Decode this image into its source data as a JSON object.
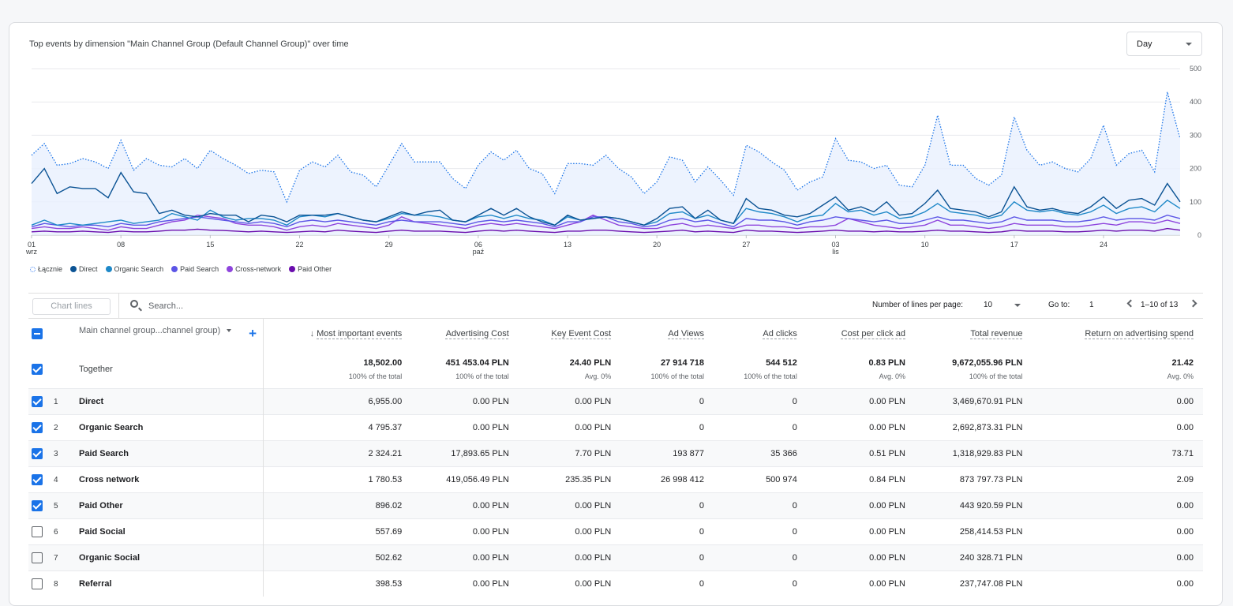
{
  "card": {
    "title": "Top events by dimension \"Main Channel Group (Default Channel Group)\" over time"
  },
  "granularity": {
    "selected": "Day"
  },
  "chart_data": {
    "type": "line",
    "x": [
      "2024-09-01",
      "2024-09-02",
      "2024-09-03",
      "2024-09-04",
      "2024-09-05",
      "2024-09-06",
      "2024-09-07",
      "2024-09-08",
      "2024-09-09",
      "2024-09-10",
      "2024-09-11",
      "2024-09-12",
      "2024-09-13",
      "2024-09-14",
      "2024-09-15",
      "2024-09-16",
      "2024-09-17",
      "2024-09-18",
      "2024-09-19",
      "2024-09-20",
      "2024-09-21",
      "2024-09-22",
      "2024-09-23",
      "2024-09-24",
      "2024-09-25",
      "2024-09-26",
      "2024-09-27",
      "2024-09-28",
      "2024-09-29",
      "2024-09-30",
      "2024-10-01",
      "2024-10-02",
      "2024-10-03",
      "2024-10-04",
      "2024-10-05",
      "2024-10-06",
      "2024-10-07",
      "2024-10-08",
      "2024-10-09",
      "2024-10-10",
      "2024-10-11",
      "2024-10-12",
      "2024-10-13",
      "2024-10-14",
      "2024-10-15",
      "2024-10-16",
      "2024-10-17",
      "2024-10-18",
      "2024-10-19",
      "2024-10-20",
      "2024-10-21",
      "2024-10-22",
      "2024-10-23",
      "2024-10-24",
      "2024-10-25",
      "2024-10-26",
      "2024-10-27",
      "2024-10-28",
      "2024-10-29",
      "2024-10-30",
      "2024-10-31",
      "2024-11-01",
      "2024-11-02",
      "2024-11-03",
      "2024-11-04",
      "2024-11-05",
      "2024-11-06",
      "2024-11-07",
      "2024-11-08",
      "2024-11-09",
      "2024-11-10",
      "2024-11-11",
      "2024-11-12",
      "2024-11-13",
      "2024-11-14",
      "2024-11-15",
      "2024-11-16",
      "2024-11-17",
      "2024-11-18",
      "2024-11-19",
      "2024-11-20",
      "2024-11-21",
      "2024-11-22",
      "2024-11-23",
      "2024-11-24",
      "2024-11-25",
      "2024-11-26",
      "2024-11-27",
      "2024-11-28",
      "2024-11-29",
      "2024-11-30"
    ],
    "series": [
      {
        "name": "Łącznie",
        "color": "#1a73e8",
        "style": "dotted-area",
        "values": [
          240,
          275,
          210,
          215,
          230,
          220,
          200,
          285,
          195,
          230,
          210,
          205,
          230,
          200,
          255,
          230,
          210,
          185,
          195,
          190,
          100,
          195,
          220,
          205,
          240,
          190,
          180,
          145,
          210,
          275,
          220,
          220,
          220,
          170,
          140,
          210,
          250,
          225,
          255,
          200,
          185,
          125,
          215,
          215,
          210,
          240,
          200,
          175,
          125,
          160,
          235,
          225,
          160,
          205,
          165,
          120,
          270,
          250,
          220,
          195,
          135,
          160,
          175,
          290,
          225,
          220,
          200,
          210,
          150,
          145,
          210,
          360,
          210,
          210,
          170,
          150,
          180,
          355,
          255,
          210,
          220,
          200,
          190,
          230,
          330,
          210,
          245,
          255,
          190,
          430,
          290
        ]
      },
      {
        "name": "Direct",
        "color": "#0b5394",
        "style": "line",
        "values": [
          155,
          200,
          125,
          145,
          140,
          140,
          112,
          188,
          130,
          125,
          65,
          75,
          60,
          55,
          65,
          60,
          60,
          40,
          60,
          55,
          40,
          60,
          60,
          60,
          65,
          55,
          45,
          40,
          55,
          70,
          60,
          70,
          75,
          45,
          40,
          60,
          80,
          60,
          80,
          55,
          40,
          30,
          60,
          45,
          50,
          55,
          50,
          40,
          30,
          50,
          80,
          85,
          50,
          75,
          45,
          35,
          110,
          80,
          75,
          60,
          55,
          65,
          90,
          115,
          75,
          85,
          70,
          100,
          60,
          65,
          95,
          135,
          80,
          75,
          70,
          55,
          70,
          145,
          85,
          75,
          80,
          70,
          65,
          85,
          115,
          80,
          105,
          110,
          90,
          155,
          100
        ]
      },
      {
        "name": "Organic Search",
        "color": "#1e88c8",
        "style": "line",
        "values": [
          30,
          45,
          30,
          35,
          30,
          35,
          40,
          45,
          35,
          40,
          45,
          65,
          55,
          45,
          75,
          55,
          45,
          50,
          50,
          45,
          30,
          55,
          60,
          55,
          65,
          55,
          45,
          40,
          50,
          65,
          60,
          60,
          55,
          45,
          40,
          55,
          60,
          50,
          60,
          50,
          45,
          30,
          55,
          45,
          50,
          55,
          50,
          40,
          30,
          40,
          65,
          70,
          50,
          60,
          45,
          35,
          80,
          70,
          65,
          55,
          40,
          55,
          60,
          95,
          70,
          75,
          60,
          70,
          50,
          55,
          70,
          95,
          70,
          65,
          60,
          50,
          60,
          100,
          75,
          70,
          75,
          65,
          60,
          70,
          90,
          65,
          80,
          85,
          70,
          105,
          80
        ]
      },
      {
        "name": "Paid Search",
        "color": "#5c55e6",
        "style": "line",
        "values": [
          25,
          35,
          30,
          25,
          30,
          30,
          25,
          35,
          30,
          30,
          40,
          45,
          50,
          55,
          50,
          45,
          40,
          35,
          40,
          35,
          25,
          40,
          45,
          40,
          45,
          40,
          35,
          30,
          40,
          45,
          40,
          40,
          40,
          35,
          30,
          40,
          45,
          40,
          45,
          40,
          35,
          25,
          40,
          40,
          55,
          55,
          40,
          35,
          25,
          30,
          45,
          50,
          40,
          45,
          35,
          25,
          50,
          45,
          45,
          40,
          30,
          40,
          45,
          55,
          50,
          45,
          40,
          45,
          35,
          35,
          45,
          55,
          45,
          45,
          40,
          35,
          40,
          55,
          45,
          45,
          45,
          40,
          40,
          45,
          55,
          45,
          50,
          50,
          45,
          60,
          50
        ]
      },
      {
        "name": "Cross-network",
        "color": "#8e44dd",
        "style": "line",
        "values": [
          20,
          25,
          20,
          20,
          25,
          20,
          15,
          25,
          20,
          20,
          30,
          40,
          45,
          60,
          55,
          50,
          35,
          30,
          30,
          25,
          15,
          25,
          30,
          25,
          35,
          30,
          25,
          20,
          30,
          55,
          40,
          35,
          30,
          25,
          20,
          30,
          35,
          30,
          35,
          30,
          25,
          20,
          30,
          40,
          60,
          45,
          30,
          25,
          20,
          20,
          30,
          35,
          25,
          30,
          25,
          20,
          30,
          30,
          25,
          25,
          20,
          25,
          25,
          30,
          50,
          40,
          30,
          25,
          20,
          25,
          30,
          45,
          30,
          30,
          25,
          20,
          25,
          35,
          30,
          30,
          30,
          25,
          25,
          30,
          35,
          30,
          40,
          40,
          35,
          45,
          35
        ]
      },
      {
        "name": "Paid Other",
        "color": "#6a0dad",
        "style": "line",
        "values": [
          10,
          12,
          10,
          10,
          12,
          10,
          8,
          12,
          10,
          10,
          12,
          15,
          15,
          18,
          15,
          14,
          12,
          10,
          12,
          10,
          8,
          10,
          12,
          10,
          15,
          12,
          10,
          8,
          12,
          15,
          12,
          12,
          12,
          10,
          8,
          12,
          15,
          12,
          15,
          12,
          10,
          8,
          12,
          12,
          15,
          15,
          12,
          10,
          8,
          10,
          12,
          15,
          10,
          12,
          10,
          8,
          15,
          12,
          12,
          10,
          8,
          10,
          12,
          15,
          12,
          12,
          10,
          12,
          10,
          10,
          12,
          15,
          12,
          12,
          10,
          8,
          10,
          15,
          12,
          12,
          12,
          10,
          10,
          12,
          15,
          12,
          15,
          15,
          12,
          20,
          15
        ]
      }
    ],
    "x_ticks": [
      {
        "i": 0,
        "label": "01",
        "sub": "wrz"
      },
      {
        "i": 7,
        "label": "08",
        "sub": ""
      },
      {
        "i": 14,
        "label": "15",
        "sub": ""
      },
      {
        "i": 21,
        "label": "22",
        "sub": ""
      },
      {
        "i": 28,
        "label": "29",
        "sub": ""
      },
      {
        "i": 35,
        "label": "06",
        "sub": "paź"
      },
      {
        "i": 42,
        "label": "13",
        "sub": ""
      },
      {
        "i": 49,
        "label": "20",
        "sub": ""
      },
      {
        "i": 56,
        "label": "27",
        "sub": ""
      },
      {
        "i": 63,
        "label": "03",
        "sub": "lis"
      },
      {
        "i": 70,
        "label": "10",
        "sub": ""
      },
      {
        "i": 77,
        "label": "17",
        "sub": ""
      },
      {
        "i": 84,
        "label": "24",
        "sub": ""
      }
    ],
    "y_ticks": [
      0,
      100,
      200,
      300,
      400,
      500
    ],
    "ylim": [
      0,
      500
    ],
    "grid": true,
    "legend_position": "bottom-left"
  },
  "toolbar": {
    "chart_lines": "Chart lines",
    "search_placeholder": "Search...",
    "lines_per_page_label": "Number of lines per page:",
    "lines_per_page": "10",
    "goto_label": "Go to:",
    "goto_value": "1",
    "range": "1–10 of 13"
  },
  "table": {
    "dim_header": "Main channel group...channel group)",
    "plus": "+",
    "sort_arrow": "↓",
    "headers": [
      "Most important events",
      "Advertising Cost",
      "Key Event Cost",
      "Ad Views",
      "Ad clicks",
      "Cost per click ad",
      "Total revenue",
      "Return on advertising spend"
    ],
    "totals": {
      "label": "Together",
      "values": [
        "18,502.00",
        "451 453.04 PLN",
        "24.40 PLN",
        "27 914 718",
        "544 512",
        "0.83 PLN",
        "9,672,055.96 PLN",
        "21.42"
      ],
      "subs": [
        "100% of the total",
        "100% of the total",
        "Avg. 0%",
        "100% of the total",
        "100% of the total",
        "Avg. 0%",
        "100% of the total",
        "Avg. 0%"
      ]
    },
    "rows": [
      {
        "n": "1",
        "name": "Direct",
        "checked": true,
        "values": [
          "6,955.00",
          "0.00 PLN",
          "0.00 PLN",
          "0",
          "0",
          "0.00 PLN",
          "3,469,670.91 PLN",
          "0.00"
        ]
      },
      {
        "n": "2",
        "name": "Organic Search",
        "checked": true,
        "values": [
          "4 795.37",
          "0.00 PLN",
          "0.00 PLN",
          "0",
          "0",
          "0.00 PLN",
          "2,692,873.31 PLN",
          "0.00"
        ]
      },
      {
        "n": "3",
        "name": "Paid Search",
        "checked": true,
        "values": [
          "2 324.21",
          "17,893.65 PLN",
          "7.70 PLN",
          "193 877",
          "35 366",
          "0.51 PLN",
          "1,318,929.83 PLN",
          "73.71"
        ]
      },
      {
        "n": "4",
        "name": "Cross network",
        "checked": true,
        "values": [
          "1 780.53",
          "419,056.49 PLN",
          "235.35 PLN",
          "26 998 412",
          "500 974",
          "0.84 PLN",
          "873 797.73 PLN",
          "2.09"
        ]
      },
      {
        "n": "5",
        "name": "Paid Other",
        "checked": true,
        "values": [
          "896.02",
          "0.00 PLN",
          "0.00 PLN",
          "0",
          "0",
          "0.00 PLN",
          "443 920.59 PLN",
          "0.00"
        ]
      },
      {
        "n": "6",
        "name": "Paid Social",
        "checked": false,
        "values": [
          "557.69",
          "0.00 PLN",
          "0.00 PLN",
          "0",
          "0",
          "0.00 PLN",
          "258,414.53 PLN",
          "0.00"
        ]
      },
      {
        "n": "7",
        "name": "Organic Social",
        "checked": false,
        "values": [
          "502.62",
          "0.00 PLN",
          "0.00 PLN",
          "0",
          "0",
          "0.00 PLN",
          "240 328.71 PLN",
          "0.00"
        ]
      },
      {
        "n": "8",
        "name": "Referral",
        "checked": false,
        "values": [
          "398.53",
          "0.00 PLN",
          "0.00 PLN",
          "0",
          "0",
          "0.00 PLN",
          "237,747.08 PLN",
          "0.00"
        ]
      }
    ]
  }
}
